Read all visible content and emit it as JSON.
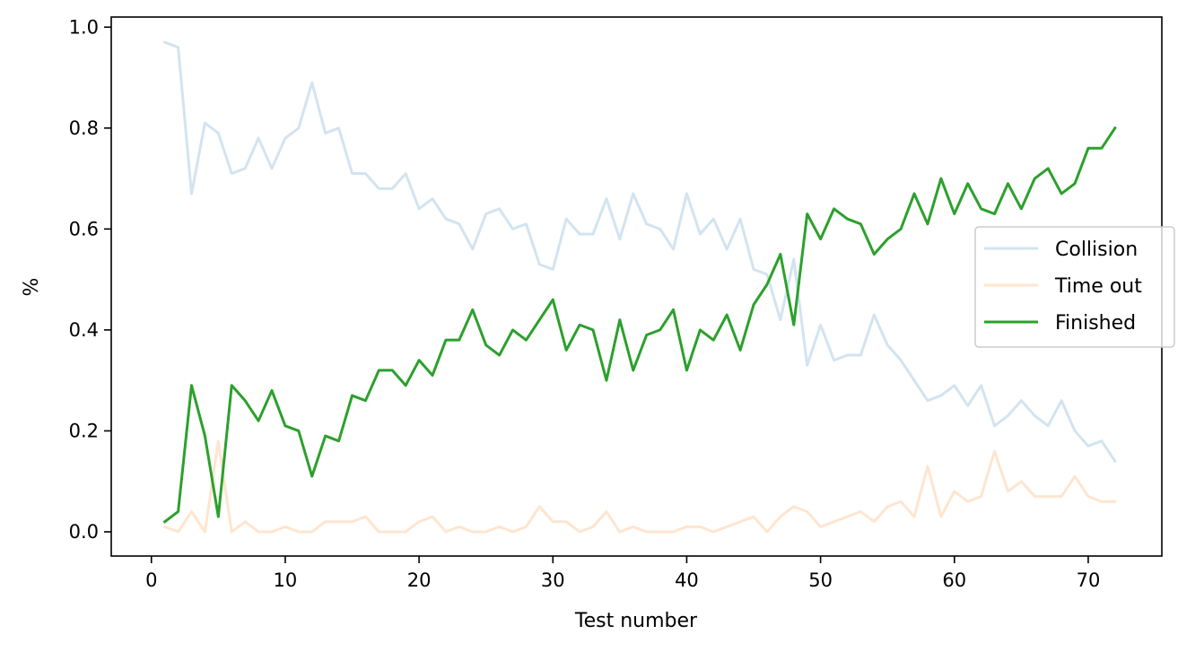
{
  "chart_data": {
    "type": "line",
    "title": "",
    "xlabel": "Test number",
    "ylabel": "%",
    "xlim": [
      -3,
      75.5
    ],
    "ylim": [
      -0.048,
      1.02
    ],
    "xticks": [
      0,
      10,
      20,
      30,
      40,
      50,
      60,
      70
    ],
    "yticks": [
      0.0,
      0.2,
      0.4,
      0.6,
      0.8,
      1.0
    ],
    "xtick_labels": [
      "0",
      "10",
      "20",
      "30",
      "40",
      "50",
      "60",
      "70"
    ],
    "ytick_labels": [
      "0.0",
      "0.2",
      "0.4",
      "0.6",
      "0.8",
      "1.0"
    ],
    "grid": false,
    "legend_position": "center-right",
    "x": [
      1,
      2,
      3,
      4,
      5,
      6,
      7,
      8,
      9,
      10,
      11,
      12,
      13,
      14,
      15,
      16,
      17,
      18,
      19,
      20,
      21,
      22,
      23,
      24,
      25,
      26,
      27,
      28,
      29,
      30,
      31,
      32,
      33,
      34,
      35,
      36,
      37,
      38,
      39,
      40,
      41,
      42,
      43,
      44,
      45,
      46,
      47,
      48,
      49,
      50,
      51,
      52,
      53,
      54,
      55,
      56,
      57,
      58,
      59,
      60,
      61,
      62,
      63,
      64,
      65,
      66,
      67,
      68,
      69,
      70,
      71,
      72
    ],
    "series": [
      {
        "name": "Collision",
        "color": "#1f77b4",
        "opacity": 0.2,
        "values": [
          0.97,
          0.96,
          0.67,
          0.81,
          0.79,
          0.71,
          0.72,
          0.78,
          0.72,
          0.78,
          0.8,
          0.89,
          0.79,
          0.8,
          0.71,
          0.71,
          0.68,
          0.68,
          0.71,
          0.64,
          0.66,
          0.62,
          0.61,
          0.56,
          0.63,
          0.64,
          0.6,
          0.61,
          0.53,
          0.52,
          0.62,
          0.59,
          0.59,
          0.66,
          0.58,
          0.67,
          0.61,
          0.6,
          0.56,
          0.67,
          0.59,
          0.62,
          0.56,
          0.62,
          0.52,
          0.51,
          0.42,
          0.54,
          0.33,
          0.41,
          0.34,
          0.35,
          0.35,
          0.43,
          0.37,
          0.34,
          0.3,
          0.26,
          0.27,
          0.29,
          0.25,
          0.29,
          0.21,
          0.23,
          0.26,
          0.23,
          0.21,
          0.26,
          0.2,
          0.17,
          0.18,
          0.14
        ]
      },
      {
        "name": "Time out",
        "color": "#ff7f0e",
        "opacity": 0.2,
        "values": [
          0.01,
          0.0,
          0.04,
          0.0,
          0.18,
          0.0,
          0.02,
          0.0,
          0.0,
          0.01,
          0.0,
          0.0,
          0.02,
          0.02,
          0.02,
          0.03,
          0.0,
          0.0,
          0.0,
          0.02,
          0.03,
          0.0,
          0.01,
          0.0,
          0.0,
          0.01,
          0.0,
          0.01,
          0.05,
          0.02,
          0.02,
          0.0,
          0.01,
          0.04,
          0.0,
          0.01,
          0.0,
          0.0,
          0.0,
          0.01,
          0.01,
          0.0,
          0.01,
          0.02,
          0.03,
          0.0,
          0.03,
          0.05,
          0.04,
          0.01,
          0.02,
          0.03,
          0.04,
          0.02,
          0.05,
          0.06,
          0.03,
          0.13,
          0.03,
          0.08,
          0.06,
          0.07,
          0.16,
          0.08,
          0.1,
          0.07,
          0.07,
          0.07,
          0.11,
          0.07,
          0.06,
          0.06
        ]
      },
      {
        "name": "Finished",
        "color": "#2ca02c",
        "opacity": 1,
        "values": [
          0.02,
          0.04,
          0.29,
          0.19,
          0.03,
          0.29,
          0.26,
          0.22,
          0.28,
          0.21,
          0.2,
          0.11,
          0.19,
          0.18,
          0.27,
          0.26,
          0.32,
          0.32,
          0.29,
          0.34,
          0.31,
          0.38,
          0.38,
          0.44,
          0.37,
          0.35,
          0.4,
          0.38,
          0.42,
          0.46,
          0.36,
          0.41,
          0.4,
          0.3,
          0.42,
          0.32,
          0.39,
          0.4,
          0.44,
          0.32,
          0.4,
          0.38,
          0.43,
          0.36,
          0.45,
          0.49,
          0.55,
          0.41,
          0.63,
          0.58,
          0.64,
          0.62,
          0.61,
          0.55,
          0.58,
          0.6,
          0.67,
          0.61,
          0.7,
          0.63,
          0.69,
          0.64,
          0.63,
          0.69,
          0.64,
          0.7,
          0.72,
          0.67,
          0.69,
          0.76,
          0.76,
          0.8
        ]
      }
    ]
  }
}
